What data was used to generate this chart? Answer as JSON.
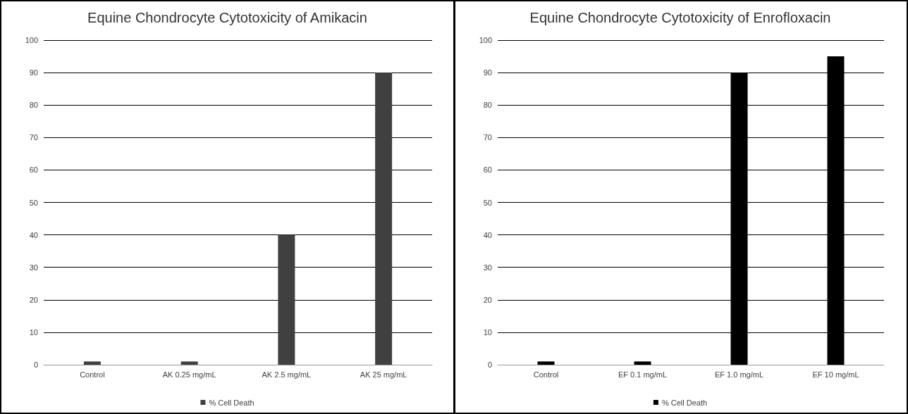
{
  "chart_data": [
    {
      "type": "bar",
      "title": "Equine Chondrocyte Cytotoxicity of Amikacin",
      "categories": [
        "Control",
        "AK 0.25 mg/mL",
        "AK 2.5 mg/mL",
        "AK 25 mg/mL"
      ],
      "series": [
        {
          "name": "% Cell Death",
          "color": "#404040",
          "values": [
            1,
            1,
            40,
            90
          ]
        }
      ],
      "ylim": [
        0,
        100
      ],
      "yticks": [
        0,
        10,
        20,
        30,
        40,
        50,
        60,
        70,
        80,
        90,
        100
      ],
      "grid": "y",
      "legend": "bottom"
    },
    {
      "type": "bar",
      "title": "Equine Chondrocyte Cytotoxicity of Enrofloxacin",
      "categories": [
        "Control",
        "EF 0.1 mg/mL",
        "EF 1.0 mg/mL",
        "EF 10 mg/mL"
      ],
      "series": [
        {
          "name": "% Cell Death",
          "color": "#000000",
          "values": [
            1,
            1,
            90,
            95
          ]
        }
      ],
      "ylim": [
        0,
        100
      ],
      "yticks": [
        0,
        10,
        20,
        30,
        40,
        50,
        60,
        70,
        80,
        90,
        100
      ],
      "grid": "y",
      "legend": "bottom"
    }
  ]
}
